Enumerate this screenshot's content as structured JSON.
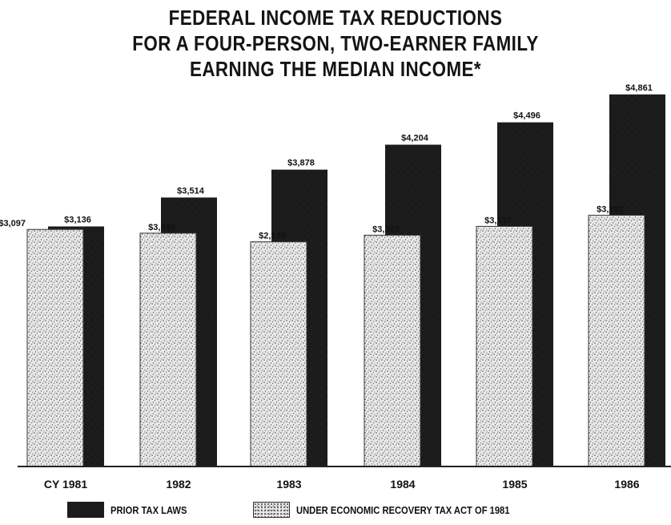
{
  "title_lines": [
    "FEDERAL INCOME TAX REDUCTIONS",
    "FOR A FOUR-PERSON, TWO-EARNER FAMILY",
    "EARNING THE MEDIAN INCOME*"
  ],
  "legend": {
    "prior_label": "PRIOR TAX LAWS",
    "erta_label": "UNDER ECONOMIC RECOVERY TAX ACT OF 1981"
  },
  "colors": {
    "prior": "#1b1b1b",
    "erta_fill": "#e8e8e8",
    "erta_speckle": "#555555"
  },
  "chart_data": {
    "type": "bar",
    "title": "FEDERAL INCOME TAX REDUCTIONS FOR A FOUR-PERSON, TWO-EARNER FAMILY EARNING THE MEDIAN INCOME*",
    "xlabel": "",
    "ylabel": "",
    "ylim": [
      0,
      5000
    ],
    "grid": false,
    "legend_position": "bottom",
    "categories": [
      "CY 1981",
      "1982",
      "1983",
      "1984",
      "1985",
      "1986"
    ],
    "series": [
      {
        "name": "UNDER ECONOMIC RECOVERY TAX ACT OF 1981",
        "values": [
          3097,
          3048,
          2935,
          3022,
          3137,
          3282
        ],
        "labels": [
          "$3,097",
          "$3,048",
          "$2,935",
          "$3,022",
          "$3,137",
          "$3,282"
        ]
      },
      {
        "name": "PRIOR TAX LAWS",
        "values": [
          3136,
          3514,
          3878,
          4204,
          4496,
          4861
        ],
        "labels": [
          "$3,136",
          "$3,514",
          "$3,878",
          "$4,204",
          "$4,496",
          "$4,861"
        ]
      }
    ]
  }
}
